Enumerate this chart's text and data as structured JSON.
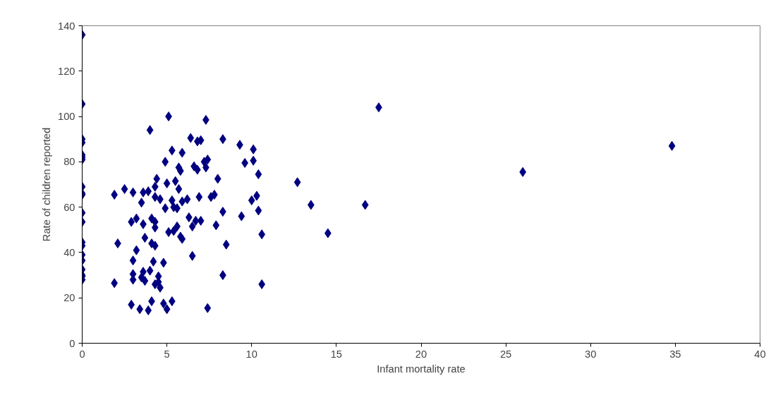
{
  "chart_data": {
    "type": "scatter",
    "xlabel": "Infant mortality rate",
    "ylabel": "Rate of children reported",
    "xlim": [
      0,
      40
    ],
    "xticks": [
      0,
      5,
      10,
      15,
      20,
      25,
      30,
      35,
      40
    ],
    "ylim": [
      0,
      140
    ],
    "yticks": [
      0,
      20,
      40,
      60,
      80,
      100,
      120,
      140
    ],
    "marker": "diamond",
    "grid": false,
    "series": [
      {
        "color": "#000080",
        "x": [
          0,
          0,
          0,
          0,
          0,
          0,
          0,
          0,
          0,
          0,
          0,
          0,
          0,
          0,
          0,
          0,
          0,
          0,
          0,
          0,
          1.9,
          2.1,
          1.9,
          2.5,
          2.9,
          3,
          3,
          3,
          3,
          2.9,
          3.2,
          3.2,
          3.4,
          3.5,
          3.6,
          3.6,
          3.6,
          3.5,
          3.7,
          3.7,
          3.9,
          3.9,
          4,
          4,
          4.1,
          4.1,
          4.1,
          4.2,
          4.3,
          4.3,
          4.3,
          4.3,
          4.3,
          4.3,
          4.4,
          4.5,
          4.6,
          4.5,
          4.6,
          4.8,
          4.8,
          4.9,
          4.9,
          5,
          5,
          5.1,
          5.1,
          5.3,
          5.3,
          5.3,
          5.4,
          5.4,
          5.5,
          5.6,
          5.6,
          5.7,
          5.7,
          5.8,
          5.8,
          5.9,
          5.9,
          5.9,
          6.2,
          6.3,
          6.4,
          6.5,
          6.5,
          6.6,
          6.7,
          6.8,
          6.8,
          6.9,
          7,
          7,
          7.2,
          7.3,
          7.3,
          7.4,
          7.4,
          7.6,
          7.8,
          7.9,
          8,
          8.3,
          8.3,
          8.3,
          8.5,
          9.3,
          9.4,
          9.6,
          10,
          10.1,
          10.1,
          10.3,
          10.4,
          10.4,
          10.6,
          10.6,
          12.7,
          13.5,
          14.5,
          16.7,
          17.5,
          26,
          34.8
        ],
        "values": [
          136,
          105.5,
          90,
          88.5,
          83,
          82,
          81,
          69,
          66,
          65.5,
          57.5,
          53.5,
          44.5,
          43,
          39,
          36.5,
          32.5,
          30,
          29.5,
          28,
          65.5,
          44,
          26.5,
          68,
          53.5,
          66.5,
          36.5,
          30.5,
          28,
          17,
          41,
          55,
          15,
          62,
          52.5,
          66.5,
          31.5,
          29,
          27.5,
          46.5,
          14.5,
          67,
          94,
          32,
          18.5,
          55,
          44,
          36,
          53.5,
          64.5,
          69,
          51,
          43,
          26,
          72.5,
          29.5,
          63.5,
          27,
          24.5,
          35.5,
          17.5,
          80,
          59.5,
          70.5,
          15,
          100,
          49,
          18.5,
          85,
          63,
          60,
          49.5,
          71.5,
          59.5,
          51.5,
          77.5,
          68,
          47,
          76,
          62.5,
          84,
          46,
          63.5,
          55.5,
          90.5,
          38.5,
          51.5,
          78,
          54,
          76.5,
          89,
          64.5,
          89.5,
          54,
          80,
          98.5,
          77.5,
          81,
          15.5,
          64.5,
          65.5,
          52,
          72.5,
          90,
          58,
          30,
          43.5,
          87.5,
          56,
          79.5,
          63,
          85.5,
          80.5,
          65,
          74.5,
          58.5,
          48,
          26,
          71,
          61,
          48.5,
          61,
          104,
          75.5,
          87
        ]
      }
    ]
  }
}
